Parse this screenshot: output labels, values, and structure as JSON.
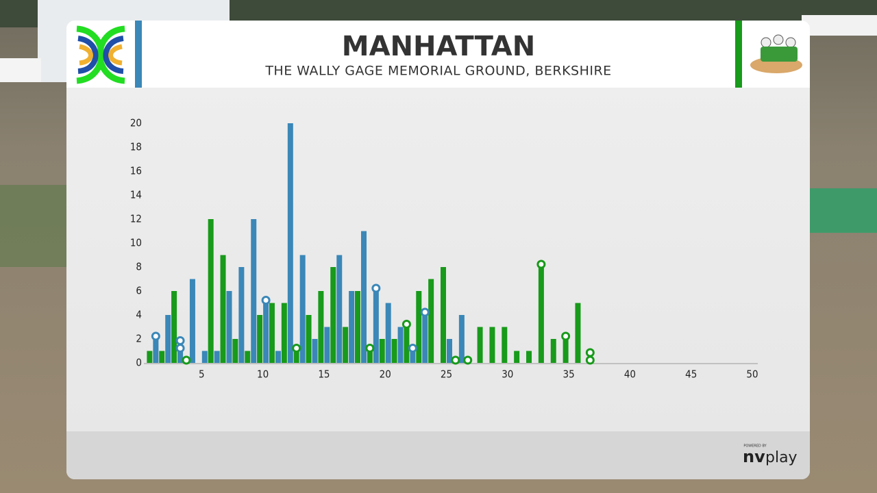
{
  "chart_data": {
    "type": "bar",
    "title": "MANHATTAN",
    "subtitle": "THE WALLY GAGE MEMORIAL GROUND, BERKSHIRE",
    "x": [
      1,
      2,
      3,
      4,
      5,
      6,
      7,
      8,
      9,
      10,
      11,
      12,
      13,
      14,
      15,
      16,
      17,
      18,
      19,
      20,
      21,
      22,
      23,
      24,
      25,
      26,
      27,
      28,
      29,
      30,
      31,
      32,
      33,
      34,
      35,
      36,
      37
    ],
    "series": [
      {
        "color": "#189a1a",
        "values": [
          1,
          1,
          6,
          0,
          0,
          12,
          9,
          2,
          1,
          4,
          5,
          5,
          1,
          4,
          6,
          8,
          3,
          6,
          1,
          2,
          2,
          3,
          6,
          7,
          8,
          0,
          0,
          3,
          3,
          3,
          1,
          1,
          8,
          2,
          2,
          5,
          0
        ],
        "wicket_overs": [
          4,
          13,
          19,
          22,
          26,
          27,
          33,
          35,
          37,
          37
        ]
      },
      {
        "color": "#3a87b8",
        "values": [
          2,
          4,
          1,
          7,
          1,
          1,
          6,
          8,
          12,
          5,
          1,
          20,
          9,
          2,
          3,
          9,
          6,
          11,
          6,
          5,
          3,
          1,
          4,
          0,
          2,
          4,
          null,
          null,
          null,
          null,
          null,
          null,
          null,
          null,
          null,
          null,
          null
        ],
        "wicket_overs": [
          1,
          3,
          3,
          10,
          19,
          22,
          23
        ]
      }
    ],
    "xlim": [
      0,
      50
    ],
    "xticks": [
      5,
      10,
      15,
      20,
      25,
      30,
      35,
      40,
      45,
      50
    ],
    "ylim": [
      0,
      20
    ],
    "yticks": [
      0,
      2,
      4,
      6,
      8,
      10,
      12,
      14,
      16,
      18,
      20
    ]
  },
  "footer": {
    "powered_by": "POWERED BY",
    "logo_nv": "nv",
    "logo_play": "play"
  }
}
